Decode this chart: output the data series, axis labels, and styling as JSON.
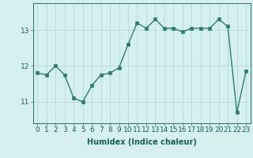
{
  "x": [
    0,
    1,
    2,
    3,
    4,
    5,
    6,
    7,
    8,
    9,
    10,
    11,
    12,
    13,
    14,
    15,
    16,
    17,
    18,
    19,
    20,
    21,
    22,
    23
  ],
  "y": [
    11.8,
    11.75,
    12.0,
    11.75,
    11.1,
    11.0,
    11.45,
    11.75,
    11.8,
    11.95,
    12.6,
    13.2,
    13.05,
    13.3,
    13.05,
    13.05,
    12.95,
    13.05,
    13.05,
    13.05,
    13.3,
    13.1,
    10.7,
    11.85
  ],
  "xlabel": "Humidex (Indice chaleur)",
  "line_color": "#2e7d6e",
  "marker_color": "#2e7d6e",
  "bg_color": "#d6f0f0",
  "grid_color": "#b8dada",
  "xlim": [
    -0.5,
    23.5
  ],
  "ylim": [
    10.4,
    13.75
  ],
  "yticks": [
    11,
    12,
    13
  ],
  "xticks": [
    0,
    1,
    2,
    3,
    4,
    5,
    6,
    7,
    8,
    9,
    10,
    11,
    12,
    13,
    14,
    15,
    16,
    17,
    18,
    19,
    20,
    21,
    22,
    23
  ],
  "xlabel_fontsize": 7,
  "tick_fontsize": 6.5,
  "linewidth": 1.0,
  "markersize": 2.5
}
